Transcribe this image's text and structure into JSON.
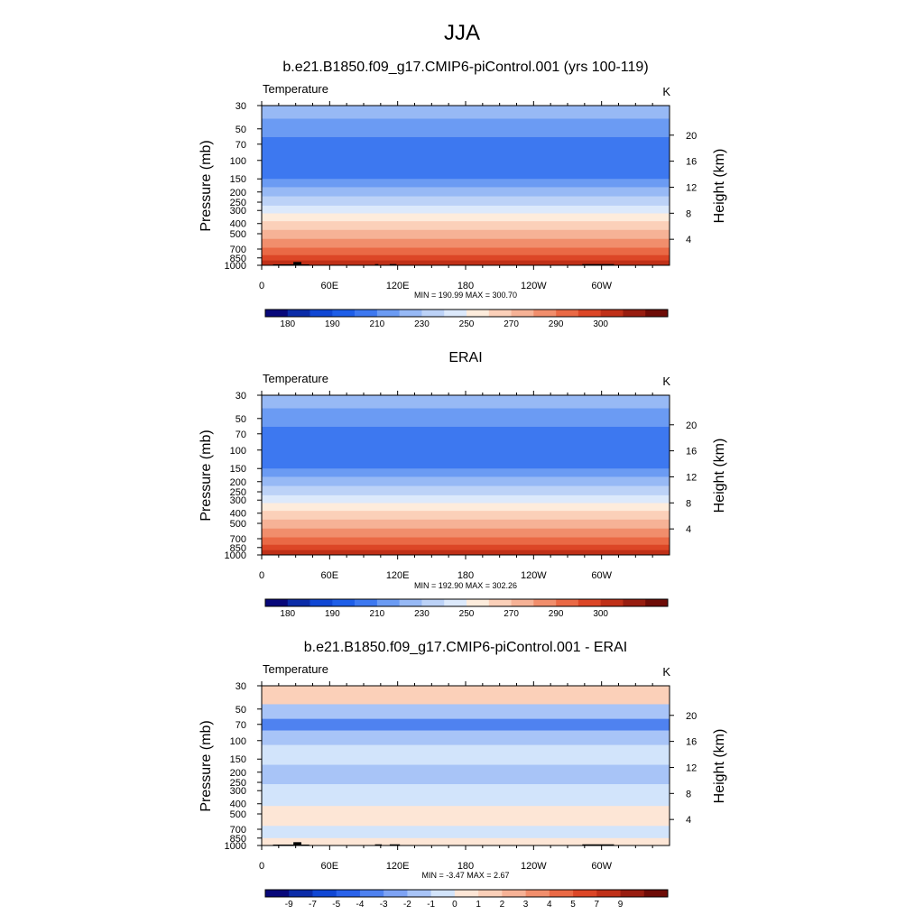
{
  "figure": {
    "title": "JJA"
  },
  "colors": {
    "abs_palette": [
      "#08087a",
      "#0b2ca8",
      "#1047d4",
      "#1e5ee8",
      "#3d78f0",
      "#6b9bf3",
      "#97b9f5",
      "#bcd2f7",
      "#dce9fb",
      "#fdecdc",
      "#fbd0b9",
      "#f6b296",
      "#f18e6c",
      "#ea6945",
      "#dc4626",
      "#c03018",
      "#981d10",
      "#6e0c07"
    ],
    "diff_palette": [
      "#08087a",
      "#0b2ca8",
      "#1047d4",
      "#2962ea",
      "#4f82f0",
      "#7ea3f4",
      "#a8c4f7",
      "#d2e4fb",
      "#fde6d6",
      "#fbd0b9",
      "#f6b296",
      "#f18e6c",
      "#ea6945",
      "#dc4626",
      "#c03018",
      "#981d10",
      "#6e0c07"
    ]
  },
  "panels": [
    {
      "title": "b.e21.B1850.f09_g17.CMIP6-piControl.001 (yrs 100-119)",
      "left_label": "Temperature",
      "right_label": "K",
      "ylabel": "Pressure (mb)",
      "ylabel_right": "Height (km)",
      "stats": "MIN = 190.99  MAX = 300.70",
      "colorbar_labels": [
        "180",
        "190",
        "210",
        "230",
        "250",
        "270",
        "290",
        "300"
      ]
    },
    {
      "title": "ERAI",
      "left_label": "Temperature",
      "right_label": "K",
      "ylabel": "Pressure (mb)",
      "ylabel_right": "Height (km)",
      "stats": "MIN = 192.90  MAX = 302.26",
      "colorbar_labels": [
        "180",
        "190",
        "210",
        "230",
        "250",
        "270",
        "290",
        "300"
      ]
    },
    {
      "title": "b.e21.B1850.f09_g17.CMIP6-piControl.001 - ERAI",
      "left_label": "Temperature",
      "right_label": "K",
      "ylabel": "Pressure (mb)",
      "ylabel_right": "Height (km)",
      "stats": "MIN =  -3.47  MAX =   2.67",
      "colorbar_labels": [
        "-9",
        "-7",
        "-5",
        "-4",
        "-3",
        "-2",
        "-1",
        "0",
        "1",
        "2",
        "3",
        "4",
        "5",
        "7",
        "9"
      ]
    }
  ],
  "chart_data": [
    {
      "type": "heatmap",
      "title": "b.e21.B1850.f09_g17.CMIP6-piControl.001 (yrs 100-119)",
      "variable": "Temperature",
      "units": "K",
      "xlabel": "",
      "ylabel": "Pressure (mb)",
      "ylabel_right": "Height (km)",
      "x_ticks": [
        "0",
        "60E",
        "120E",
        "180",
        "120W",
        "60W"
      ],
      "x_tick_values": [
        0,
        60,
        120,
        180,
        240,
        300
      ],
      "xlim": [
        0,
        360
      ],
      "y_ticks": [
        30,
        50,
        70,
        100,
        150,
        200,
        250,
        300,
        400,
        500,
        700,
        850,
        1000
      ],
      "ylim": [
        1000,
        30
      ],
      "y_scale": "log",
      "y_right_ticks": [
        4,
        8,
        12,
        16,
        20
      ],
      "levels": [
        180,
        185,
        190,
        200,
        210,
        220,
        230,
        240,
        250,
        260,
        270,
        275,
        280,
        285,
        290,
        295,
        300
      ],
      "layers": [
        {
          "p_top": 30,
          "p_bot": 40,
          "value": 222
        },
        {
          "p_top": 40,
          "p_bot": 60,
          "value": 215
        },
        {
          "p_top": 60,
          "p_bot": 150,
          "value": 205
        },
        {
          "p_top": 150,
          "p_bot": 180,
          "value": 215
        },
        {
          "p_top": 180,
          "p_bot": 220,
          "value": 222
        },
        {
          "p_top": 220,
          "p_bot": 270,
          "value": 232
        },
        {
          "p_top": 270,
          "p_bot": 320,
          "value": 245
        },
        {
          "p_top": 320,
          "p_bot": 380,
          "value": 252
        },
        {
          "p_top": 380,
          "p_bot": 460,
          "value": 262
        },
        {
          "p_top": 460,
          "p_bot": 560,
          "value": 272
        },
        {
          "p_top": 560,
          "p_bot": 680,
          "value": 277
        },
        {
          "p_top": 680,
          "p_bot": 800,
          "value": 282
        },
        {
          "p_top": 800,
          "p_bot": 900,
          "value": 287
        },
        {
          "p_top": 900,
          "p_bot": 1000,
          "value": 292
        }
      ],
      "min": 190.99,
      "max": 300.7,
      "topography": [
        {
          "lon0": 10,
          "lon1": 42,
          "p": 980
        },
        {
          "lon0": 28,
          "lon1": 35,
          "p": 930
        },
        {
          "lon0": 100,
          "lon1": 103,
          "p": 975
        },
        {
          "lon0": 113,
          "lon1": 119,
          "p": 975
        },
        {
          "lon0": 283,
          "lon1": 311,
          "p": 975
        }
      ]
    },
    {
      "type": "heatmap",
      "title": "ERAI",
      "variable": "Temperature",
      "units": "K",
      "xlabel": "",
      "ylabel": "Pressure (mb)",
      "ylabel_right": "Height (km)",
      "x_ticks": [
        "0",
        "60E",
        "120E",
        "180",
        "120W",
        "60W"
      ],
      "x_tick_values": [
        0,
        60,
        120,
        180,
        240,
        300
      ],
      "xlim": [
        0,
        360
      ],
      "y_ticks": [
        30,
        50,
        70,
        100,
        150,
        200,
        250,
        300,
        400,
        500,
        700,
        850,
        1000
      ],
      "ylim": [
        1000,
        30
      ],
      "y_scale": "log",
      "y_right_ticks": [
        4,
        8,
        12,
        16,
        20
      ],
      "levels": [
        180,
        185,
        190,
        200,
        210,
        220,
        230,
        240,
        250,
        260,
        270,
        275,
        280,
        285,
        290,
        295,
        300
      ],
      "layers": [
        {
          "p_top": 30,
          "p_bot": 40,
          "value": 222
        },
        {
          "p_top": 40,
          "p_bot": 60,
          "value": 215
        },
        {
          "p_top": 60,
          "p_bot": 150,
          "value": 205
        },
        {
          "p_top": 150,
          "p_bot": 180,
          "value": 215
        },
        {
          "p_top": 180,
          "p_bot": 220,
          "value": 222
        },
        {
          "p_top": 220,
          "p_bot": 270,
          "value": 232
        },
        {
          "p_top": 270,
          "p_bot": 320,
          "value": 245
        },
        {
          "p_top": 320,
          "p_bot": 380,
          "value": 252
        },
        {
          "p_top": 380,
          "p_bot": 460,
          "value": 262
        },
        {
          "p_top": 460,
          "p_bot": 560,
          "value": 272
        },
        {
          "p_top": 560,
          "p_bot": 680,
          "value": 277
        },
        {
          "p_top": 680,
          "p_bot": 800,
          "value": 282
        },
        {
          "p_top": 800,
          "p_bot": 900,
          "value": 287
        },
        {
          "p_top": 900,
          "p_bot": 1000,
          "value": 292
        }
      ],
      "min": 192.9,
      "max": 302.26
    },
    {
      "type": "heatmap",
      "title": "b.e21.B1850.f09_g17.CMIP6-piControl.001 - ERAI",
      "variable": "Temperature",
      "units": "K",
      "xlabel": "",
      "ylabel": "Pressure (mb)",
      "ylabel_right": "Height (km)",
      "x_ticks": [
        "0",
        "60E",
        "120E",
        "180",
        "120W",
        "60W"
      ],
      "x_tick_values": [
        0,
        60,
        120,
        180,
        240,
        300
      ],
      "xlim": [
        0,
        360
      ],
      "y_ticks": [
        30,
        50,
        70,
        100,
        150,
        200,
        250,
        300,
        400,
        500,
        700,
        850,
        1000
      ],
      "ylim": [
        1000,
        30
      ],
      "y_scale": "log",
      "y_right_ticks": [
        4,
        8,
        12,
        16,
        20
      ],
      "levels": [
        -9,
        -7,
        -5,
        -4,
        -3,
        -2,
        -1,
        0,
        1,
        2,
        3,
        4,
        5,
        7,
        9
      ],
      "layers": [
        {
          "p_top": 30,
          "p_bot": 45,
          "value": 1.5
        },
        {
          "p_top": 45,
          "p_bot": 62,
          "value": -1.5
        },
        {
          "p_top": 62,
          "p_bot": 80,
          "value": -3.2
        },
        {
          "p_top": 80,
          "p_bot": 110,
          "value": -1.5
        },
        {
          "p_top": 110,
          "p_bot": 170,
          "value": -0.5
        },
        {
          "p_top": 170,
          "p_bot": 260,
          "value": -1.5
        },
        {
          "p_top": 260,
          "p_bot": 420,
          "value": -0.5
        },
        {
          "p_top": 420,
          "p_bot": 650,
          "value": 0.5
        },
        {
          "p_top": 650,
          "p_bot": 850,
          "value": -0.5
        },
        {
          "p_top": 850,
          "p_bot": 1000,
          "value": 0.5
        }
      ],
      "min": -3.47,
      "max": 2.67,
      "topography": [
        {
          "lon0": 10,
          "lon1": 42,
          "p": 980
        },
        {
          "lon0": 28,
          "lon1": 35,
          "p": 930
        },
        {
          "lon0": 100,
          "lon1": 106,
          "p": 975
        },
        {
          "lon0": 113,
          "lon1": 122,
          "p": 975
        },
        {
          "lon0": 283,
          "lon1": 311,
          "p": 975
        }
      ]
    }
  ]
}
